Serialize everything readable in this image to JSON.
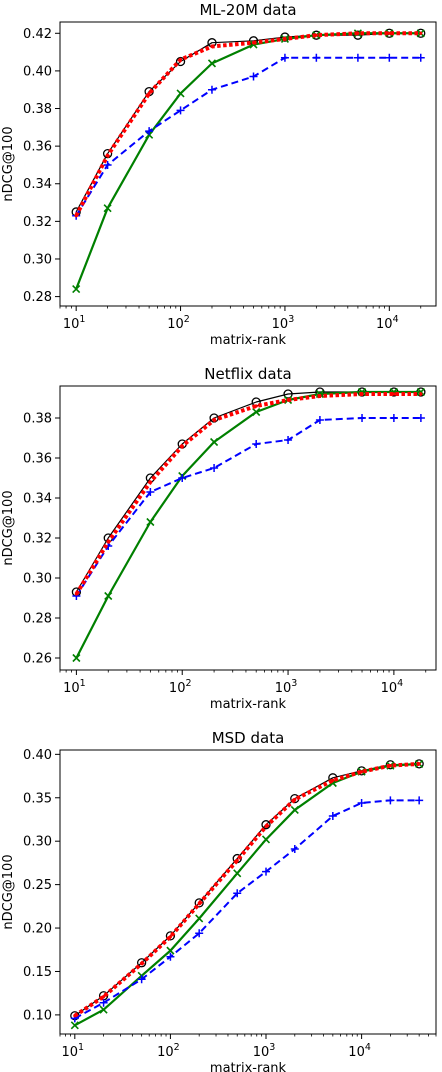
{
  "chart_data": [
    {
      "type": "line",
      "title": "ML-20M data",
      "xlabel": "matrix-rank",
      "ylabel": "nDCG@100",
      "xscale": "log",
      "xlim": [
        7,
        28000
      ],
      "ylim": [
        0.275,
        0.426
      ],
      "yticks": [
        "0.28",
        "0.30",
        "0.32",
        "0.34",
        "0.36",
        "0.38",
        "0.40",
        "0.42"
      ],
      "xticks": [
        {
          "base": "10",
          "exp": "1"
        },
        {
          "base": "10",
          "exp": "2"
        },
        {
          "base": "10",
          "exp": "3"
        },
        {
          "base": "10",
          "exp": "4"
        }
      ],
      "grid": false,
      "legend": "none",
      "series": [
        {
          "style": "black-circle",
          "color": "#000000",
          "x": [
            10,
            20,
            50,
            100,
            200,
            500,
            1000,
            2000,
            5000,
            10000,
            20000
          ],
          "y": [
            0.325,
            0.356,
            0.389,
            0.405,
            0.415,
            0.416,
            0.418,
            0.419,
            0.419,
            0.42,
            0.42
          ]
        },
        {
          "style": "red-dotted",
          "color": "#ff0000",
          "x": [
            10,
            20,
            50,
            100,
            200,
            500,
            1000,
            2000,
            5000,
            10000,
            20000
          ],
          "y": [
            0.323,
            0.355,
            0.388,
            0.406,
            0.413,
            0.415,
            0.417,
            0.419,
            0.42,
            0.42,
            0.42
          ]
        },
        {
          "style": "green-x",
          "color": "#008000",
          "x": [
            10,
            20,
            50,
            100,
            200,
            500,
            1000,
            2000,
            5000,
            10000,
            20000
          ],
          "y": [
            0.284,
            0.327,
            0.366,
            0.388,
            0.404,
            0.414,
            0.417,
            0.419,
            0.42,
            0.42,
            0.42
          ]
        },
        {
          "style": "blue-plus",
          "color": "#0000ff",
          "x": [
            10,
            20,
            50,
            100,
            200,
            500,
            1000,
            2000,
            5000,
            10000,
            20000
          ],
          "y": [
            0.323,
            0.35,
            0.368,
            0.379,
            0.39,
            0.397,
            0.407,
            0.407,
            0.407,
            0.407,
            0.407
          ]
        }
      ]
    },
    {
      "type": "line",
      "title": "Netflix data",
      "xlabel": "matrix-rank",
      "ylabel": "nDCG@100",
      "xscale": "log",
      "xlim": [
        7,
        25000
      ],
      "ylim": [
        0.254,
        0.396
      ],
      "yticks": [
        "0.26",
        "0.28",
        "0.30",
        "0.32",
        "0.34",
        "0.36",
        "0.38"
      ],
      "xticks": [
        {
          "base": "10",
          "exp": "1"
        },
        {
          "base": "10",
          "exp": "2"
        },
        {
          "base": "10",
          "exp": "3"
        },
        {
          "base": "10",
          "exp": "4"
        }
      ],
      "grid": false,
      "legend": "none",
      "series": [
        {
          "style": "black-circle",
          "color": "#000000",
          "x": [
            10,
            20,
            50,
            100,
            200,
            500,
            1000,
            2000,
            5000,
            10000,
            18000
          ],
          "y": [
            0.293,
            0.32,
            0.35,
            0.367,
            0.38,
            0.388,
            0.392,
            0.393,
            0.393,
            0.393,
            0.393
          ]
        },
        {
          "style": "red-dotted",
          "color": "#ff0000",
          "x": [
            10,
            20,
            50,
            100,
            200,
            500,
            1000,
            2000,
            5000,
            10000,
            18000
          ],
          "y": [
            0.292,
            0.318,
            0.348,
            0.366,
            0.379,
            0.386,
            0.389,
            0.391,
            0.392,
            0.392,
            0.392
          ]
        },
        {
          "style": "green-x",
          "color": "#008000",
          "x": [
            10,
            20,
            50,
            100,
            200,
            500,
            1000,
            2000,
            5000,
            10000,
            18000
          ],
          "y": [
            0.26,
            0.291,
            0.328,
            0.351,
            0.368,
            0.383,
            0.389,
            0.392,
            0.393,
            0.393,
            0.393
          ]
        },
        {
          "style": "blue-plus",
          "color": "#0000ff",
          "x": [
            10,
            20,
            50,
            100,
            200,
            500,
            1000,
            2000,
            5000,
            10000,
            18000
          ],
          "y": [
            0.291,
            0.316,
            0.343,
            0.35,
            0.355,
            0.367,
            0.369,
            0.379,
            0.38,
            0.38,
            0.38
          ]
        }
      ]
    },
    {
      "type": "line",
      "title": "MSD data",
      "xlabel": "matrix-rank",
      "ylabel": "nDCG@100",
      "xscale": "log",
      "xlim": [
        7,
        60000
      ],
      "ylim": [
        0.078,
        0.405
      ],
      "yticks": [
        "0.10",
        "0.15",
        "0.20",
        "0.25",
        "0.30",
        "0.35",
        "0.40"
      ],
      "xticks": [
        {
          "base": "10",
          "exp": "1"
        },
        {
          "base": "10",
          "exp": "2"
        },
        {
          "base": "10",
          "exp": "3"
        },
        {
          "base": "10",
          "exp": "4"
        }
      ],
      "grid": false,
      "legend": "none",
      "series": [
        {
          "style": "black-circle",
          "color": "#000000",
          "x": [
            10,
            20,
            50,
            100,
            200,
            500,
            1000,
            2000,
            5000,
            10000,
            20000,
            40000
          ],
          "y": [
            0.099,
            0.122,
            0.16,
            0.191,
            0.229,
            0.28,
            0.319,
            0.349,
            0.373,
            0.381,
            0.388,
            0.389
          ]
        },
        {
          "style": "red-dotted",
          "color": "#ff0000",
          "x": [
            10,
            20,
            50,
            100,
            200,
            500,
            1000,
            2000,
            5000,
            10000,
            20000,
            40000
          ],
          "y": [
            0.099,
            0.121,
            0.159,
            0.19,
            0.228,
            0.278,
            0.317,
            0.348,
            0.37,
            0.38,
            0.387,
            0.389
          ]
        },
        {
          "style": "green-x",
          "color": "#008000",
          "x": [
            10,
            20,
            50,
            100,
            200,
            500,
            1000,
            2000,
            5000,
            10000,
            20000,
            40000
          ],
          "y": [
            0.088,
            0.106,
            0.145,
            0.174,
            0.211,
            0.263,
            0.302,
            0.336,
            0.367,
            0.38,
            0.387,
            0.389
          ]
        },
        {
          "style": "blue-plus",
          "color": "#0000ff",
          "x": [
            10,
            20,
            50,
            100,
            200,
            500,
            1000,
            2000,
            5000,
            10000,
            20000,
            40000
          ],
          "y": [
            0.096,
            0.114,
            0.141,
            0.167,
            0.194,
            0.24,
            0.265,
            0.291,
            0.329,
            0.344,
            0.347,
            0.347
          ]
        }
      ]
    }
  ]
}
